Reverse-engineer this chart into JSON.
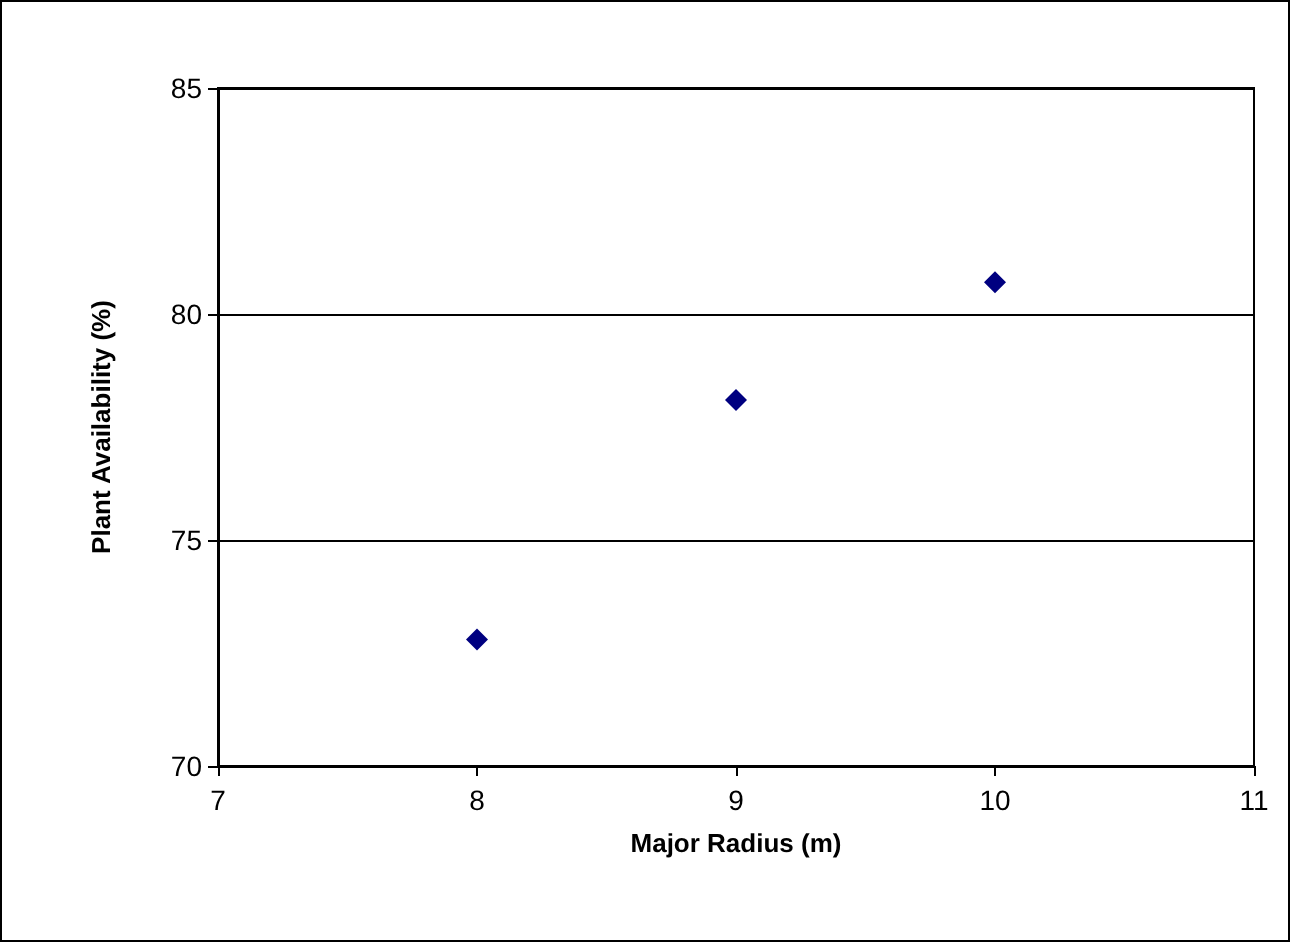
{
  "chart_data": {
    "type": "scatter",
    "xlabel": "Major Radius (m)",
    "ylabel": "Plant Availability (%)",
    "x": [
      8,
      9,
      10
    ],
    "series": [
      {
        "color": "#000080",
        "values": [
          72.8,
          78.1,
          80.7
        ]
      }
    ],
    "xlim": [
      7,
      11
    ],
    "xticks": [
      7,
      8,
      9,
      10,
      11
    ],
    "ylim": [
      70,
      85
    ],
    "yticks": [
      70,
      75,
      80,
      85
    ],
    "grid": "y",
    "marker": "diamond"
  }
}
